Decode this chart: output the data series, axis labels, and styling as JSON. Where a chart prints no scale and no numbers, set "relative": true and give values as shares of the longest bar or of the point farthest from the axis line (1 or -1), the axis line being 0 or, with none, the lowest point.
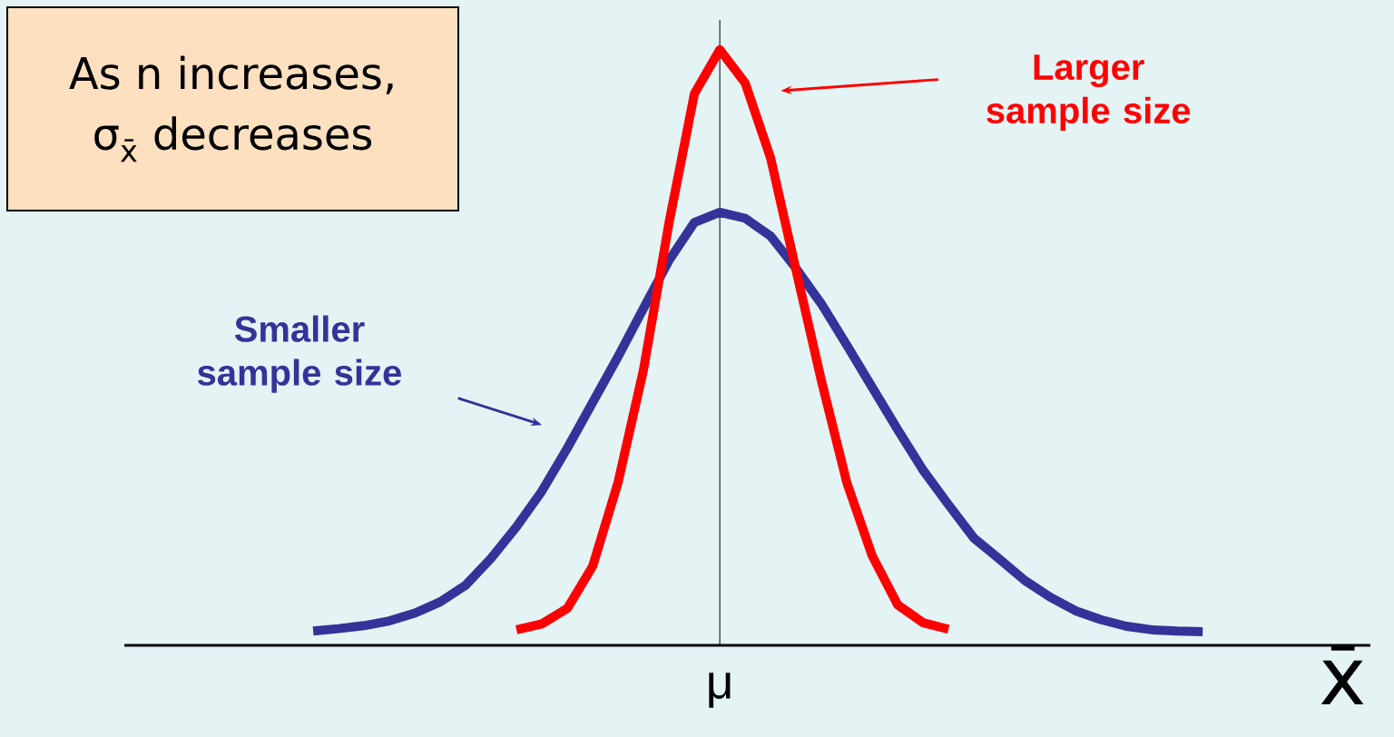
{
  "chart_data": {
    "type": "line",
    "relative": true,
    "xlabel": "x̄",
    "annotations": [
      "As n increases,",
      "σ$_{x̄}$ decreases",
      "μ"
    ],
    "categories": [
      null,
      null,
      null,
      null,
      null,
      null,
      null,
      null,
      null,
      null,
      null,
      null,
      null,
      null,
      null,
      null,
      null,
      null,
      null,
      null,
      null,
      null,
      null,
      null,
      null,
      null,
      null,
      null,
      null,
      null,
      null,
      null,
      null,
      null,
      null,
      null
    ],
    "series": [
      {
        "name": "Smaller sample size",
        "color": "#333399",
        "values": [
          0.024,
          0.028,
          0.033,
          0.041,
          0.054,
          0.073,
          0.101,
          0.146,
          0.199,
          0.259,
          0.331,
          0.408,
          0.485,
          0.566,
          0.646,
          0.71,
          0.727,
          0.717,
          0.687,
          0.633,
          0.573,
          0.504,
          0.433,
          0.362,
          0.294,
          0.236,
          0.18,
          0.145,
          0.109,
          0.081,
          0.058,
          0.043,
          0.032,
          0.026,
          0.024,
          0.023
        ]
      },
      {
        "name": "Larger sample size",
        "color": "#ff0000",
        "values": [
          null,
          null,
          null,
          null,
          null,
          null,
          null,
          null,
          0.026,
          0.036,
          0.062,
          0.133,
          0.274,
          0.463,
          0.709,
          0.926,
          1,
          0.944,
          0.818,
          0.63,
          0.444,
          0.273,
          0.15,
          0.068,
          0.038,
          0.027,
          null,
          null,
          null,
          null,
          null,
          null,
          null,
          null,
          null,
          null
        ]
      }
    ]
  }
}
